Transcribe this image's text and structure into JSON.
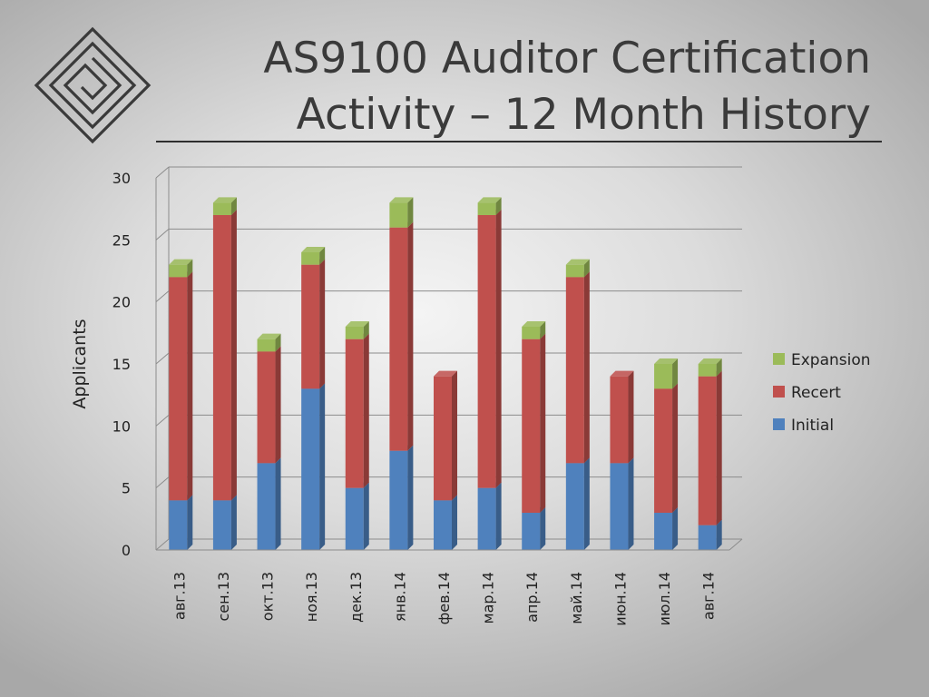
{
  "title_line1": "AS9100 Auditor Certification",
  "title_line2": "Activity – 12 Month History",
  "logo_icon": "concentric-diamond-spiral-icon",
  "chart_data": {
    "type": "bar",
    "stacked": true,
    "title": "AS9100 Auditor Certification Activity – 12 Month History",
    "xlabel": "",
    "ylabel": "Applicants",
    "ylim": [
      0,
      30
    ],
    "yticks": [
      0,
      5,
      10,
      15,
      20,
      25,
      30
    ],
    "grid": true,
    "legend_position": "right",
    "categories": [
      "авг.13",
      "сен.13",
      "окт.13",
      "ноя.13",
      "дек.13",
      "янв.14",
      "фев.14",
      "мар.14",
      "апр.14",
      "май.14",
      "июн.14",
      "июл.14",
      "авг.14"
    ],
    "series": [
      {
        "name": "Initial",
        "color": "#4f81bd",
        "values": [
          4,
          4,
          7,
          13,
          5,
          8,
          4,
          5,
          3,
          7,
          7,
          3,
          2
        ]
      },
      {
        "name": "Recert",
        "color": "#c0504d",
        "values": [
          18,
          23,
          9,
          10,
          12,
          18,
          10,
          22,
          14,
          15,
          7,
          10,
          12
        ]
      },
      {
        "name": "Expansion",
        "color": "#9bbb59",
        "values": [
          1,
          1,
          1,
          1,
          1,
          2,
          0,
          1,
          1,
          1,
          0,
          2,
          1
        ]
      }
    ],
    "legend_order": [
      "Expansion",
      "Recert",
      "Initial"
    ]
  }
}
